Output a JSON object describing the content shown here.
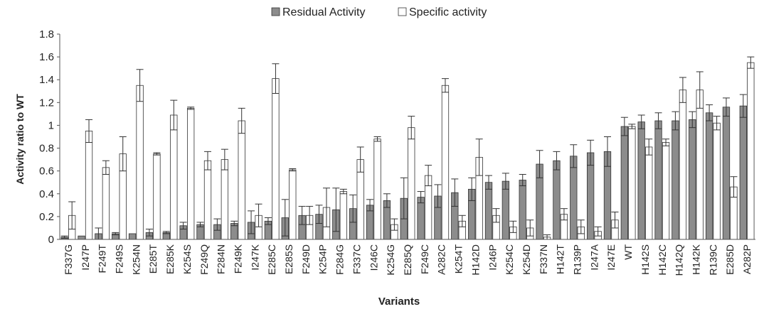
{
  "chart_data": {
    "type": "bar",
    "xlabel": "Variants",
    "ylabel": "Activity ratio to WT",
    "ylim": [
      0,
      1.8
    ],
    "yticks": [
      "0",
      "0.2",
      "0.4",
      "0.6",
      "0.8",
      "1",
      "1.2",
      "1.4",
      "1.6",
      "1.8"
    ],
    "grid": false,
    "legend_position": "top-center",
    "categories": [
      "F337G",
      "I247P",
      "F249T",
      "F249S",
      "K254N",
      "E285T",
      "E285K",
      "K254S",
      "F249Q",
      "F284N",
      "F249K",
      "I247K",
      "E285C",
      "E285S",
      "F249D",
      "K254P",
      "F284G",
      "F337C",
      "I246C",
      "K254G",
      "E285Q",
      "F249C",
      "A282C",
      "K254T",
      "H142D",
      "I246P",
      "K254C",
      "K254D",
      "F337N",
      "H142T",
      "R139P",
      "I247A",
      "I247E",
      "WT",
      "H142S",
      "H142C",
      "H142Q",
      "H142K",
      "R139C",
      "E285D",
      "A282P"
    ],
    "series": [
      {
        "name": "Residual Activity",
        "color": "#8c8c8c",
        "values": [
          0.02,
          0.03,
          0.05,
          0.05,
          0.05,
          0.06,
          0.06,
          0.12,
          0.13,
          0.13,
          0.14,
          0.15,
          0.16,
          0.19,
          0.21,
          0.22,
          0.26,
          0.27,
          0.3,
          0.34,
          0.36,
          0.37,
          0.38,
          0.41,
          0.44,
          0.5,
          0.51,
          0.52,
          0.66,
          0.69,
          0.73,
          0.76,
          0.77,
          0.99,
          1.03,
          1.04,
          1.04,
          1.05,
          1.11,
          1.16,
          1.17
        ],
        "errors": [
          0.01,
          0.0,
          0.05,
          0.01,
          0.0,
          0.03,
          0.01,
          0.03,
          0.02,
          0.05,
          0.02,
          0.1,
          0.03,
          0.16,
          0.08,
          0.08,
          0.19,
          0.12,
          0.05,
          0.06,
          0.18,
          0.05,
          0.1,
          0.12,
          0.1,
          0.06,
          0.07,
          0.05,
          0.12,
          0.08,
          0.1,
          0.11,
          0.13,
          0.08,
          0.06,
          0.07,
          0.08,
          0.07,
          0.07,
          0.08,
          0.1
        ]
      },
      {
        "name": "Specific activity",
        "color": "#ffffff",
        "values": [
          0.21,
          0.95,
          0.63,
          0.75,
          1.35,
          0.75,
          1.09,
          1.15,
          0.69,
          0.7,
          1.04,
          0.21,
          1.41,
          0.61,
          0.21,
          0.28,
          0.42,
          0.7,
          0.88,
          0.13,
          0.98,
          0.56,
          1.35,
          0.16,
          0.72,
          0.21,
          0.11,
          0.1,
          0.02,
          0.22,
          0.11,
          0.07,
          0.17,
          0.99,
          0.81,
          0.85,
          1.31,
          1.31,
          1.02,
          0.46,
          1.55
        ],
        "errors": [
          0.12,
          0.1,
          0.06,
          0.15,
          0.14,
          0.01,
          0.13,
          0.01,
          0.08,
          0.09,
          0.11,
          0.1,
          0.13,
          0.01,
          0.08,
          0.17,
          0.02,
          0.11,
          0.02,
          0.05,
          0.1,
          0.09,
          0.06,
          0.05,
          0.16,
          0.06,
          0.05,
          0.07,
          0.02,
          0.05,
          0.06,
          0.04,
          0.07,
          0.02,
          0.07,
          0.03,
          0.11,
          0.16,
          0.06,
          0.09,
          0.05
        ]
      }
    ]
  }
}
